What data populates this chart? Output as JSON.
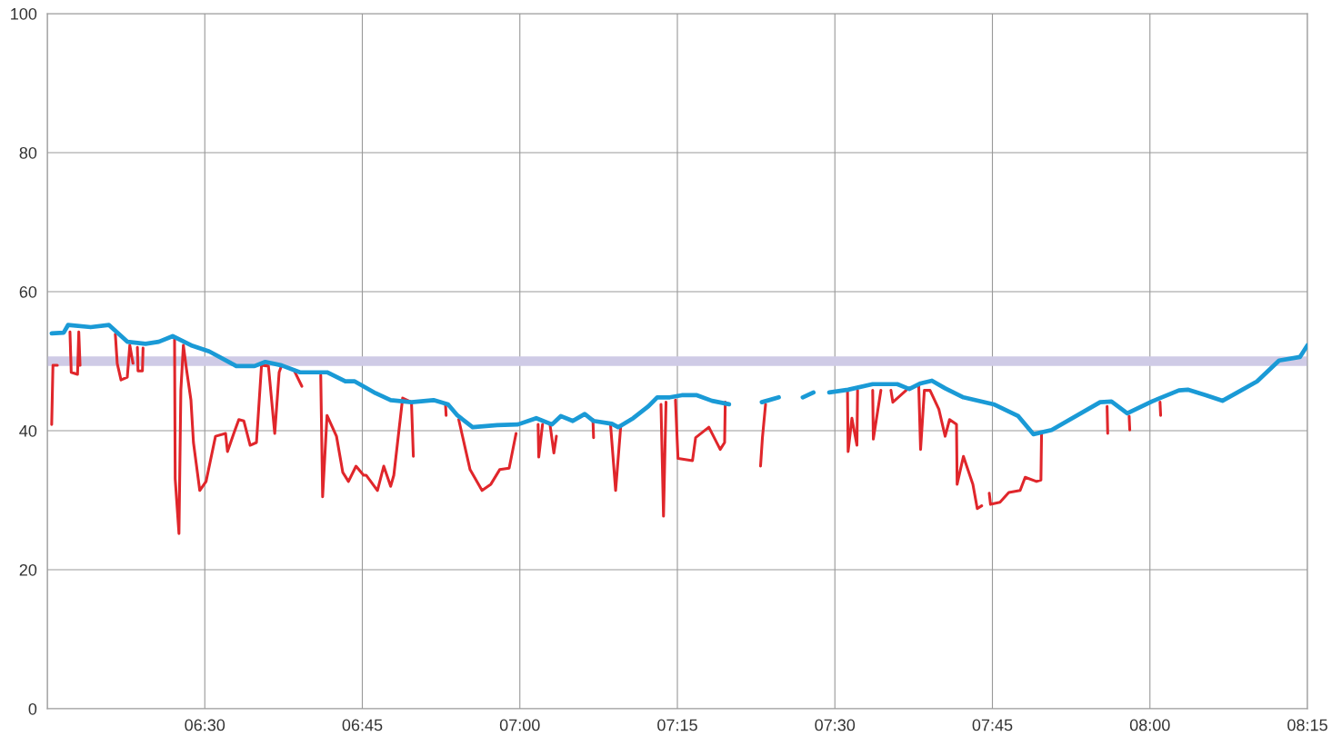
{
  "chart_data": {
    "type": "line",
    "xlim": [
      6.25,
      8.25
    ],
    "ylim": [
      0,
      100
    ],
    "xticks": [
      {
        "value": 6.25,
        "label": null
      },
      {
        "value": 6.5,
        "label": "06:30"
      },
      {
        "value": 6.75,
        "label": "06:45"
      },
      {
        "value": 7.0,
        "label": "07:00"
      },
      {
        "value": 7.25,
        "label": "07:15"
      },
      {
        "value": 7.5,
        "label": "07:30"
      },
      {
        "value": 7.75,
        "label": "07:45"
      },
      {
        "value": 8.0,
        "label": "08:00"
      },
      {
        "value": 8.25,
        "label": "08:15"
      }
    ],
    "yticks": [
      0,
      20,
      40,
      60,
      80,
      100
    ],
    "grid": true,
    "marker": "none",
    "line_style": "solid",
    "bands": [
      {
        "axis": "y",
        "from": 49.3,
        "to": 50.7,
        "color": "#cfcbe6"
      }
    ],
    "series": [
      {
        "color": "#e0262b",
        "x": [
          6.257,
          6.259,
          6.266,
          6.27,
          6.286,
          6.288,
          6.298,
          6.3,
          6.302,
          6.31,
          6.358,
          6.361,
          6.367,
          6.377,
          6.381,
          6.386,
          6.39,
          6.393,
          6.394,
          6.401,
          6.402,
          6.42,
          6.452,
          6.453,
          6.459,
          6.462,
          6.466,
          6.471,
          6.478,
          6.482,
          6.492,
          6.502,
          6.517,
          6.533,
          6.536,
          6.546,
          6.554,
          6.562,
          6.572,
          6.582,
          6.59,
          6.601,
          6.611,
          6.618,
          6.622,
          6.63,
          6.641,
          6.654,
          6.67,
          6.684,
          6.687,
          6.694,
          6.709,
          6.719,
          6.728,
          6.74,
          6.752,
          6.756,
          6.774,
          6.784,
          6.795,
          6.8,
          6.814,
          6.828,
          6.831,
          6.86,
          6.882,
          6.883,
          6.89,
          6.903,
          6.921,
          6.94,
          6.954,
          6.968,
          6.983,
          6.994,
          7.01,
          7.029,
          7.03,
          7.036,
          7.04,
          7.048,
          7.054,
          7.058,
          7.1,
          7.116,
          7.117,
          7.14,
          7.144,
          7.152,
          7.16,
          7.2,
          7.224,
          7.228,
          7.232,
          7.236,
          7.247,
          7.251,
          7.274,
          7.279,
          7.3,
          7.318,
          7.325,
          7.326,
          7.35,
          7.382,
          7.385,
          7.39,
          7.45,
          7.52,
          7.521,
          7.527,
          7.535,
          7.536,
          7.545,
          7.56,
          7.561,
          7.573,
          7.58,
          7.589,
          7.592,
          7.613,
          7.625,
          7.633,
          7.636,
          7.642,
          7.651,
          7.665,
          7.675,
          7.682,
          7.693,
          7.694,
          7.704,
          7.719,
          7.726,
          7.733,
          7.738,
          7.745,
          7.747,
          7.762,
          7.776,
          7.794,
          7.802,
          7.82,
          7.827,
          7.828,
          7.9,
          7.932,
          7.933,
          7.94,
          7.967,
          7.968,
          8.0,
          8.016,
          8.017
        ],
        "values": [
          40.9,
          49.4,
          49.4,
          null,
          54.2,
          48.4,
          48.1,
          54.2,
          49.4,
          null,
          53.9,
          49.7,
          47.3,
          47.7,
          52.3,
          49.7,
          null,
          52.0,
          48.6,
          48.6,
          51.9,
          null,
          53.2,
          33.1,
          25.2,
          45.8,
          52.3,
          48.8,
          44.4,
          38.3,
          31.4,
          32.7,
          39.2,
          39.6,
          37.0,
          39.6,
          41.6,
          41.4,
          37.9,
          38.3,
          49.4,
          49.3,
          39.6,
          48.4,
          49.4,
          null,
          48.8,
          46.4,
          null,
          48.0,
          30.5,
          42.2,
          39.2,
          34.0,
          32.7,
          34.9,
          33.6,
          33.6,
          31.4,
          34.9,
          32.0,
          33.6,
          44.7,
          44.1,
          36.3,
          null,
          43.8,
          42.2,
          null,
          41.6,
          34.4,
          31.4,
          32.3,
          34.4,
          34.6,
          39.6,
          null,
          40.9,
          36.2,
          40.9,
          null,
          40.8,
          36.8,
          39.2,
          null,
          41.6,
          39.0,
          null,
          40.8,
          31.4,
          40.5,
          null,
          43.8,
          27.7,
          44.1,
          null,
          44.4,
          36.0,
          35.7,
          39.0,
          40.5,
          37.3,
          38.3,
          44.1,
          null,
          34.9,
          39.0,
          43.8,
          null,
          45.8,
          37.0,
          41.8,
          37.9,
          45.8,
          null,
          45.8,
          38.8,
          45.8,
          null,
          45.8,
          44.1,
          45.8,
          null,
          46.7,
          37.3,
          45.8,
          45.8,
          43.1,
          39.2,
          41.6,
          40.9,
          32.3,
          36.3,
          32.3,
          28.8,
          29.2,
          null,
          31.0,
          29.4,
          29.7,
          31.1,
          31.4,
          33.3,
          32.7,
          32.9,
          39.5,
          null,
          43.5,
          39.6,
          null,
          42.1,
          40.1,
          null,
          44.1,
          42.2
        ]
      },
      {
        "color": "#1a9ad6",
        "x": [
          6.257,
          6.276,
          6.283,
          6.319,
          6.348,
          6.377,
          6.406,
          6.427,
          6.449,
          6.478,
          6.507,
          6.55,
          6.579,
          6.596,
          6.622,
          6.651,
          6.694,
          6.723,
          6.738,
          6.771,
          6.795,
          6.828,
          6.863,
          6.886,
          6.901,
          6.925,
          6.964,
          6.997,
          7.026,
          7.051,
          7.065,
          7.084,
          7.103,
          7.117,
          7.146,
          7.156,
          7.18,
          7.204,
          7.218,
          7.238,
          7.257,
          7.281,
          7.305,
          7.332,
          7.36,
          7.384,
          7.411,
          7.43,
          7.449,
          7.466,
          7.48,
          7.491,
          7.521,
          7.56,
          7.599,
          7.618,
          7.636,
          7.654,
          7.675,
          7.704,
          7.752,
          7.791,
          7.815,
          7.844,
          7.921,
          7.939,
          7.964,
          8.003,
          8.046,
          8.06,
          8.089,
          8.115,
          8.137,
          8.17,
          8.205,
          8.238,
          8.25
        ],
        "values": [
          54.0,
          54.1,
          55.2,
          54.9,
          55.2,
          52.8,
          52.5,
          52.8,
          53.6,
          52.3,
          51.4,
          49.3,
          49.3,
          49.9,
          49.4,
          48.4,
          48.4,
          47.1,
          47.1,
          45.4,
          44.4,
          44.1,
          44.4,
          43.8,
          42.2,
          40.5,
          40.8,
          40.9,
          41.8,
          40.9,
          42.1,
          41.4,
          42.4,
          41.4,
          41.0,
          40.5,
          41.8,
          43.5,
          44.8,
          44.8,
          45.1,
          45.1,
          44.3,
          43.8,
          null,
          44.1,
          44.8,
          null,
          44.8,
          45.5,
          null,
          45.5,
          45.9,
          46.7,
          46.7,
          46.0,
          46.8,
          47.2,
          46.1,
          44.8,
          43.8,
          42.1,
          39.5,
          40.1,
          44.1,
          44.2,
          42.5,
          44.2,
          45.8,
          45.9,
          45.1,
          44.3,
          45.4,
          47.1,
          50.1,
          50.6,
          52.3
        ]
      }
    ]
  }
}
